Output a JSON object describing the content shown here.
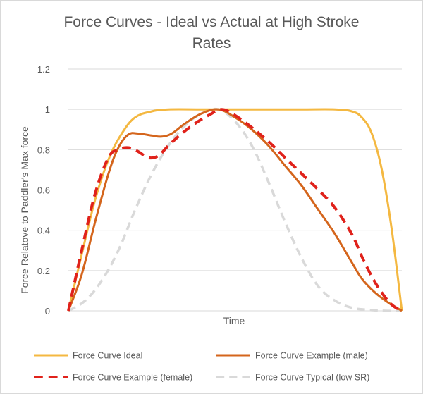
{
  "chart_data": {
    "type": "line",
    "title_lines": [
      "Force Curves - Ideal vs Actual at High Stroke",
      "Rates"
    ],
    "xlabel": "Time",
    "ylabel": "Force Relatove to Paddler's Max force",
    "ylim": [
      0,
      1.2
    ],
    "yticks": [
      "0",
      "0.2",
      "0.4",
      "0.6",
      "0.8",
      "1",
      "1.2"
    ],
    "xlim": [
      0,
      100
    ],
    "grid": true,
    "legend_position": "bottom",
    "series": [
      {
        "name": "Force Curve Ideal",
        "color": "#f4b841",
        "dash": "solid",
        "x": [
          0,
          4,
          8,
          12,
          16,
          20,
          25,
          30,
          40,
          50,
          60,
          70,
          80,
          85,
          88,
          91,
          94,
          97,
          100
        ],
        "y": [
          0,
          0.28,
          0.55,
          0.75,
          0.88,
          0.96,
          0.99,
          1.0,
          1.0,
          1.0,
          1.0,
          1.0,
          1.0,
          0.99,
          0.96,
          0.88,
          0.7,
          0.4,
          0
        ]
      },
      {
        "name": "Force Curve Example (male)",
        "color": "#d4651c",
        "dash": "solid",
        "x": [
          0,
          4,
          8,
          12,
          15,
          18,
          21,
          25,
          28,
          31,
          35,
          40,
          45,
          50,
          55,
          60,
          65,
          70,
          75,
          80,
          85,
          88,
          92,
          96,
          100
        ],
        "y": [
          0,
          0.18,
          0.44,
          0.68,
          0.81,
          0.875,
          0.88,
          0.87,
          0.865,
          0.88,
          0.93,
          0.98,
          1.0,
          0.96,
          0.9,
          0.82,
          0.72,
          0.62,
          0.5,
          0.38,
          0.24,
          0.16,
          0.09,
          0.04,
          0
        ]
      },
      {
        "name": "Force Curve Example (female)",
        "color": "#e0221b",
        "dash": "long",
        "x": [
          0,
          4,
          8,
          12,
          15,
          18,
          21,
          24,
          27,
          30,
          34,
          38,
          42,
          46,
          50,
          55,
          60,
          65,
          70,
          75,
          80,
          85,
          88,
          91,
          94,
          97,
          100
        ],
        "y": [
          0,
          0.3,
          0.58,
          0.76,
          0.8,
          0.81,
          0.79,
          0.76,
          0.77,
          0.82,
          0.88,
          0.93,
          0.97,
          1.0,
          0.97,
          0.91,
          0.84,
          0.76,
          0.68,
          0.6,
          0.51,
          0.38,
          0.27,
          0.17,
          0.09,
          0.03,
          0
        ]
      },
      {
        "name": "Force Curve Typical (low SR)",
        "color": "#d9d9d9",
        "dash": "long",
        "x": [
          0,
          5,
          10,
          15,
          20,
          25,
          30,
          35,
          40,
          45,
          50,
          55,
          60,
          65,
          70,
          75,
          80,
          85,
          90,
          95,
          100
        ],
        "y": [
          0,
          0.05,
          0.15,
          0.3,
          0.5,
          0.68,
          0.82,
          0.92,
          0.98,
          1.0,
          0.94,
          0.82,
          0.64,
          0.44,
          0.26,
          0.12,
          0.05,
          0.015,
          0.005,
          0.0,
          0
        ]
      }
    ]
  }
}
